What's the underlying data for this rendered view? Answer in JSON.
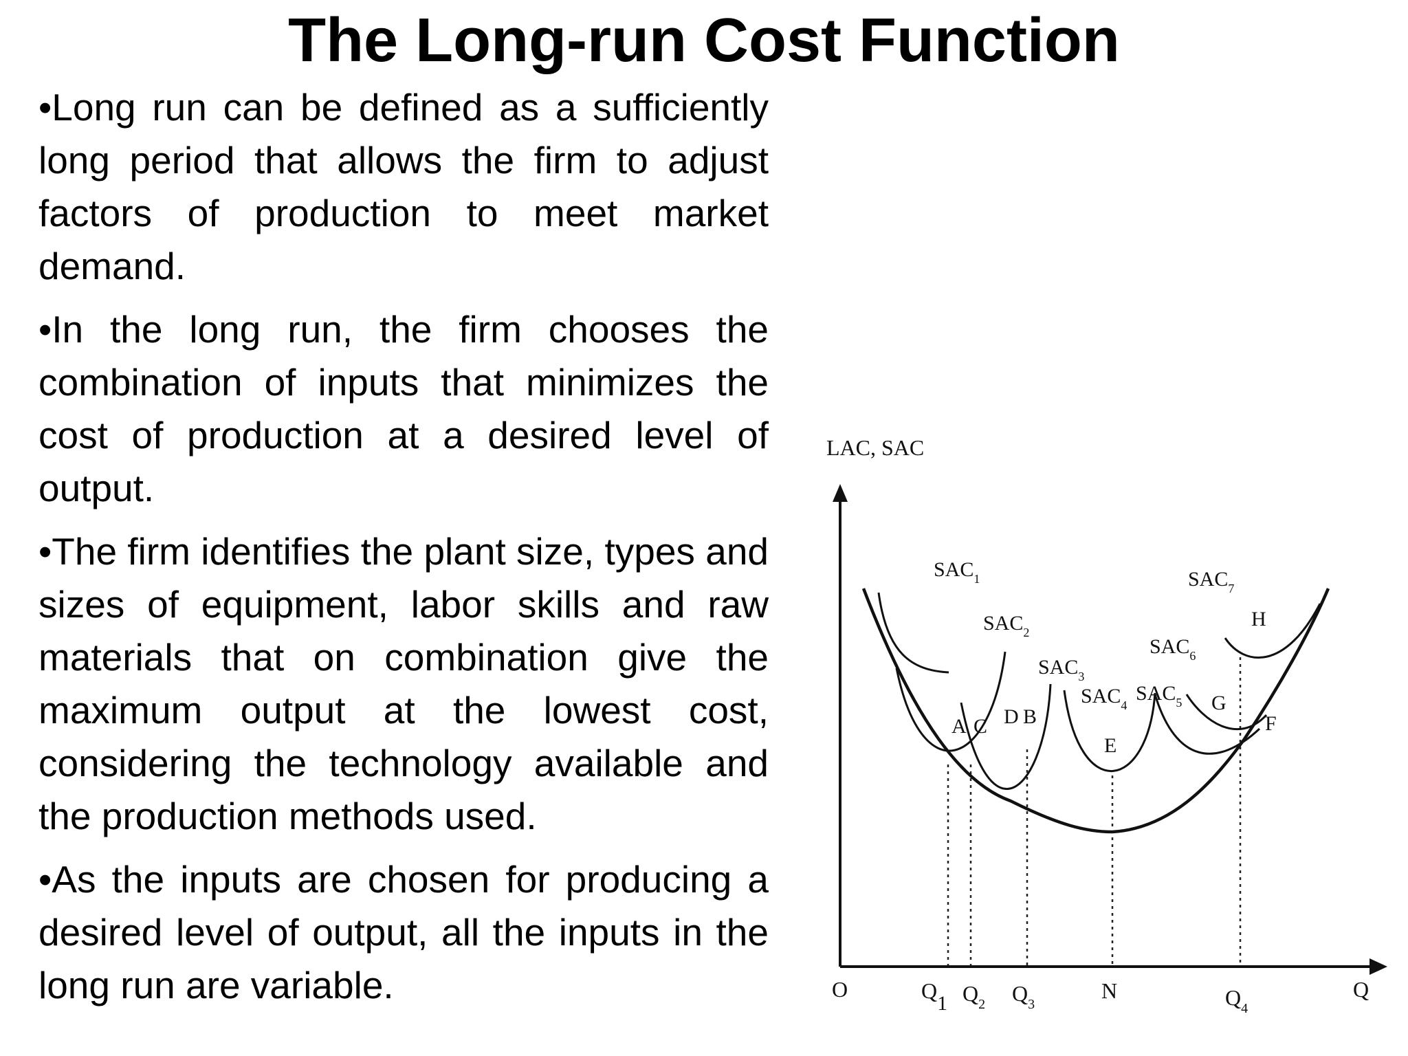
{
  "title": "The Long-run Cost Function",
  "bullets": [
    {
      "marker": "•",
      "text": "Long run can be defined as a sufficiently long period that allows the firm to adjust factors of production to meet market demand."
    },
    {
      "marker": "•",
      "text": "In the long run, the firm chooses the combination of inputs that minimizes the cost of production at a desired level of output."
    },
    {
      "marker": "•",
      "text": "The firm identifies the plant size, types and sizes of equipment, labor skills and raw materials that on combination give the maximum output at the lowest cost, considering the technology available and the production methods used."
    },
    {
      "marker": "•",
      "text": "As the inputs are chosen for producing a desired level of output, all the inputs in the long run are variable."
    }
  ],
  "diagram": {
    "y_axis_label": "LAC, SAC",
    "x_axis_label": "Q",
    "origin_label": "O",
    "x_ticks": {
      "q1": {
        "base": "Q",
        "sub": "1"
      },
      "q2": {
        "base": "Q",
        "sub": "2"
      },
      "q3": {
        "base": "Q",
        "sub": "3"
      },
      "n": {
        "base": "N",
        "sub": ""
      },
      "q4": {
        "base": "Q",
        "sub": "4"
      }
    },
    "curves": {
      "sac1": {
        "base": "SAC",
        "sub": "1"
      },
      "sac2": {
        "base": "SAC",
        "sub": "2"
      },
      "sac3": {
        "base": "SAC",
        "sub": "3"
      },
      "sac4": {
        "base": "SAC",
        "sub": "4"
      },
      "sac5": {
        "base": "SAC",
        "sub": "5"
      },
      "sac6": {
        "base": "SAC",
        "sub": "6"
      },
      "sac7": {
        "base": "SAC",
        "sub": "7"
      }
    },
    "points": {
      "a": "A",
      "c": "C",
      "d": "D",
      "b": "B",
      "e": "E",
      "g": "G",
      "f": "F",
      "h": "H"
    }
  }
}
